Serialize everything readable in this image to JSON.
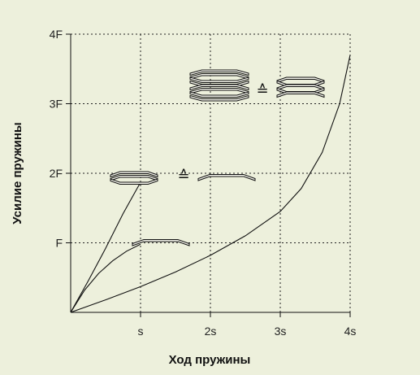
{
  "chart_data": {
    "type": "line",
    "title": "",
    "xlabel": "Ход пружины",
    "ylabel": "Усилие пружины",
    "x_ticks": [
      "s",
      "2s",
      "3s",
      "4s"
    ],
    "y_ticks": [
      "F",
      "2F",
      "3F",
      "4F"
    ],
    "xlim": [
      0,
      4
    ],
    "ylim": [
      0,
      4
    ],
    "grid": true,
    "series": [
      {
        "x": [
          0,
          0.25,
          0.5,
          0.75,
          1.0
        ],
        "y": [
          0,
          0.45,
          0.92,
          1.42,
          1.87
        ]
      },
      {
        "x": [
          0,
          0.2,
          0.4,
          0.6,
          0.8,
          1.0
        ],
        "y": [
          0,
          0.32,
          0.56,
          0.74,
          0.88,
          0.98
        ]
      },
      {
        "x": [
          0,
          0.5,
          1.0,
          1.5,
          2.0,
          2.5,
          3.0,
          3.3,
          3.6,
          3.85,
          4.0
        ],
        "y": [
          0,
          0.18,
          0.37,
          0.58,
          0.82,
          1.1,
          1.45,
          1.78,
          2.3,
          3.0,
          3.7
        ]
      }
    ],
    "annotations": [
      {
        "type": "equivalence",
        "symbol": "≙"
      },
      {
        "type": "equivalence",
        "symbol": "≙"
      }
    ]
  }
}
